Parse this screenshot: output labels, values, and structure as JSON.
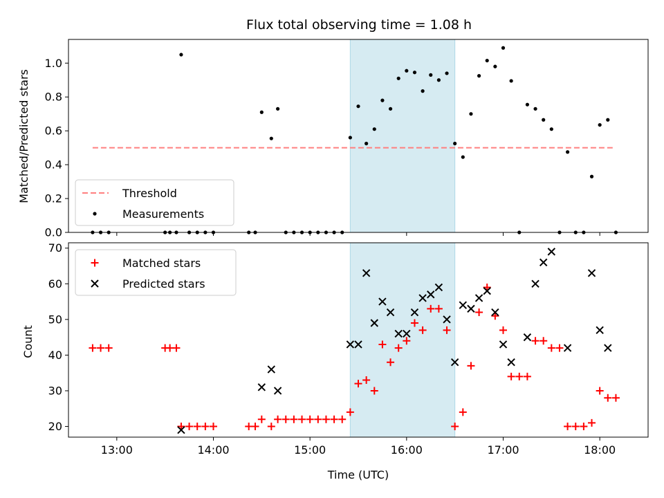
{
  "chart_data": [
    {
      "type": "scatter",
      "title": "Flux total observing time = 1.08 h",
      "xlabel": "",
      "ylabel": "Matched/Predicted stars",
      "xlim": [
        "12:30",
        "18:30"
      ],
      "ylim": [
        0,
        1.14
      ],
      "yticks": [
        "0.0",
        "0.2",
        "0.4",
        "0.6",
        "0.8",
        "1.0"
      ],
      "ytick_values": [
        0,
        0.2,
        0.4,
        0.6,
        0.8,
        1.0
      ],
      "xticks": [
        "13:00",
        "14:00",
        "15:00",
        "16:00",
        "17:00",
        "18:00"
      ],
      "xtick_labels_shown": false,
      "highlight_span": {
        "x0": "15:25",
        "x1": "16:30",
        "color": "#add8e6"
      },
      "legend": {
        "placement": "lower-left",
        "entries": [
          "Threshold",
          "Measurements"
        ]
      },
      "series": [
        {
          "name": "Threshold",
          "style": "dashed-line",
          "color": "#ff7f7f",
          "points": [
            [
              "12:45",
              0.5
            ],
            [
              "18:08",
              0.5
            ]
          ]
        },
        {
          "name": "Measurements",
          "style": "dot",
          "color": "#000000",
          "points": [
            [
              "12:45",
              0
            ],
            [
              "12:50",
              0
            ],
            [
              "12:55",
              0
            ],
            [
              "13:30",
              0
            ],
            [
              "13:33",
              0
            ],
            [
              "13:37",
              0
            ],
            [
              "13:40",
              1.05
            ],
            [
              "13:45",
              0
            ],
            [
              "13:50",
              0
            ],
            [
              "13:55",
              0
            ],
            [
              "14:00",
              0
            ],
            [
              "14:22",
              0
            ],
            [
              "14:26",
              0
            ],
            [
              "14:30",
              0.71
            ],
            [
              "14:36",
              0.555
            ],
            [
              "14:40",
              0.73
            ],
            [
              "14:45",
              0
            ],
            [
              "14:50",
              0
            ],
            [
              "14:55",
              0
            ],
            [
              "15:00",
              0
            ],
            [
              "15:05",
              0
            ],
            [
              "15:10",
              0
            ],
            [
              "15:15",
              0
            ],
            [
              "15:20",
              0
            ],
            [
              "15:25",
              0.56
            ],
            [
              "15:30",
              0.745
            ],
            [
              "15:35",
              0.525
            ],
            [
              "15:40",
              0.61
            ],
            [
              "15:45",
              0.78
            ],
            [
              "15:50",
              0.73
            ],
            [
              "15:55",
              0.91
            ],
            [
              "16:00",
              0.955
            ],
            [
              "16:05",
              0.945
            ],
            [
              "16:10",
              0.835
            ],
            [
              "16:15",
              0.93
            ],
            [
              "16:20",
              0.9
            ],
            [
              "16:25",
              0.94
            ],
            [
              "16:30",
              0.525
            ],
            [
              "16:35",
              0.445
            ],
            [
              "16:40",
              0.7
            ],
            [
              "16:45",
              0.925
            ],
            [
              "16:50",
              1.015
            ],
            [
              "16:55",
              0.98
            ],
            [
              "17:00",
              1.09
            ],
            [
              "17:05",
              0.895
            ],
            [
              "17:10",
              0
            ],
            [
              "17:15",
              0.755
            ],
            [
              "17:20",
              0.73
            ],
            [
              "17:25",
              0.665
            ],
            [
              "17:30",
              0.61
            ],
            [
              "17:35",
              0
            ],
            [
              "17:40",
              0.475
            ],
            [
              "17:45",
              0
            ],
            [
              "17:50",
              0
            ],
            [
              "17:55",
              0.33
            ],
            [
              "18:00",
              0.635
            ],
            [
              "18:05",
              0.665
            ],
            [
              "18:10",
              0
            ]
          ]
        }
      ]
    },
    {
      "type": "scatter",
      "title": "",
      "xlabel": "Time (UTC)",
      "ylabel": "Count",
      "xlim": [
        "12:30",
        "18:30"
      ],
      "ylim": [
        17,
        71.5
      ],
      "yticks": [
        "20",
        "30",
        "40",
        "50",
        "60",
        "70"
      ],
      "ytick_values": [
        20,
        30,
        40,
        50,
        60,
        70
      ],
      "xticks": [
        "13:00",
        "14:00",
        "15:00",
        "16:00",
        "17:00",
        "18:00"
      ],
      "highlight_span": {
        "x0": "15:25",
        "x1": "16:30",
        "color": "#add8e6"
      },
      "legend": {
        "placement": "top-left",
        "entries": [
          "Matched stars",
          "Predicted stars"
        ]
      },
      "series": [
        {
          "name": "Matched stars",
          "marker": "plus",
          "color": "#ff0000",
          "points": [
            [
              "12:45",
              42
            ],
            [
              "12:50",
              42
            ],
            [
              "12:55",
              42
            ],
            [
              "13:30",
              42
            ],
            [
              "13:33",
              42
            ],
            [
              "13:37",
              42
            ],
            [
              "13:40",
              20
            ],
            [
              "13:45",
              20
            ],
            [
              "13:50",
              20
            ],
            [
              "13:55",
              20
            ],
            [
              "14:00",
              20
            ],
            [
              "14:22",
              20
            ],
            [
              "14:26",
              20
            ],
            [
              "14:30",
              22
            ],
            [
              "14:36",
              20
            ],
            [
              "14:40",
              22
            ],
            [
              "14:45",
              22
            ],
            [
              "14:50",
              22
            ],
            [
              "14:55",
              22
            ],
            [
              "15:00",
              22
            ],
            [
              "15:05",
              22
            ],
            [
              "15:10",
              22
            ],
            [
              "15:15",
              22
            ],
            [
              "15:20",
              22
            ],
            [
              "15:25",
              24
            ],
            [
              "15:30",
              32
            ],
            [
              "15:35",
              33
            ],
            [
              "15:40",
              30
            ],
            [
              "15:45",
              43
            ],
            [
              "15:50",
              38
            ],
            [
              "15:55",
              42
            ],
            [
              "16:00",
              44
            ],
            [
              "16:05",
              49
            ],
            [
              "16:10",
              47
            ],
            [
              "16:15",
              53
            ],
            [
              "16:20",
              53
            ],
            [
              "16:25",
              47
            ],
            [
              "16:30",
              20
            ],
            [
              "16:35",
              24
            ],
            [
              "16:40",
              37
            ],
            [
              "16:45",
              52
            ],
            [
              "16:50",
              59
            ],
            [
              "16:55",
              51
            ],
            [
              "17:00",
              47
            ],
            [
              "17:05",
              34
            ],
            [
              "17:10",
              34
            ],
            [
              "17:15",
              34
            ],
            [
              "17:20",
              44
            ],
            [
              "17:25",
              44
            ],
            [
              "17:30",
              42
            ],
            [
              "17:35",
              42
            ],
            [
              "17:40",
              20
            ],
            [
              "17:45",
              20
            ],
            [
              "17:50",
              20
            ],
            [
              "17:55",
              21
            ],
            [
              "18:00",
              30
            ],
            [
              "18:05",
              28
            ],
            [
              "18:10",
              28
            ]
          ]
        },
        {
          "name": "Predicted stars",
          "marker": "x",
          "color": "#000000",
          "points": [
            [
              "13:40",
              19
            ],
            [
              "14:30",
              31
            ],
            [
              "14:36",
              36
            ],
            [
              "14:40",
              30
            ],
            [
              "15:25",
              43
            ],
            [
              "15:30",
              43
            ],
            [
              "15:35",
              63
            ],
            [
              "15:40",
              49
            ],
            [
              "15:45",
              55
            ],
            [
              "15:50",
              52
            ],
            [
              "15:55",
              46
            ],
            [
              "16:00",
              46
            ],
            [
              "16:05",
              52
            ],
            [
              "16:10",
              56
            ],
            [
              "16:15",
              57
            ],
            [
              "16:20",
              59
            ],
            [
              "16:25",
              50
            ],
            [
              "16:30",
              38
            ],
            [
              "16:35",
              54
            ],
            [
              "16:40",
              53
            ],
            [
              "16:45",
              56
            ],
            [
              "16:50",
              58
            ],
            [
              "16:55",
              52
            ],
            [
              "17:00",
              43
            ],
            [
              "17:05",
              38
            ],
            [
              "17:15",
              45
            ],
            [
              "17:20",
              60
            ],
            [
              "17:25",
              66
            ],
            [
              "17:30",
              69
            ],
            [
              "17:40",
              42
            ],
            [
              "17:55",
              63
            ],
            [
              "18:00",
              47
            ],
            [
              "18:05",
              42
            ]
          ]
        }
      ]
    }
  ]
}
